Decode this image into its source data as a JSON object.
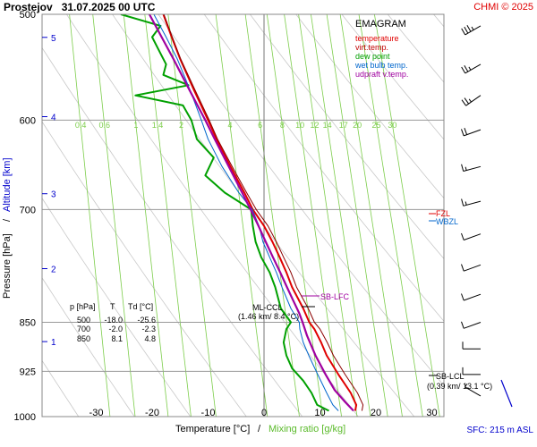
{
  "header": {
    "station_date": "Prostejov   31.07.2025 00 UTC",
    "credit": "CHMI © 2025"
  },
  "legend": {
    "title": "EMAGRAM",
    "items": [
      {
        "label": "temperature",
        "color": "#e00000"
      },
      {
        "label": "virt.temp.",
        "color": "#c00000"
      },
      {
        "label": "dew point",
        "color": "#00a000"
      },
      {
        "label": "wet bulb temp.",
        "color": "#0066cc"
      },
      {
        "label": "udpraft v.temp.",
        "color": "#a000a0"
      }
    ]
  },
  "table": {
    "header": [
      "p [hPa]",
      "T",
      "Td [°C]"
    ],
    "rows": [
      [
        "500",
        "-18.0",
        "-25.6"
      ],
      [
        "700",
        "-2.0",
        "-2.3"
      ],
      [
        "850",
        "8.1",
        "4.8"
      ]
    ]
  },
  "annotations": {
    "sb_lfc": "SB-LFC",
    "ml_ccl": "ML-CCL",
    "ml_ccl_values": "(1.46 km/ 8.4 °C)",
    "sb_lcl": "SB-LCL",
    "sb_lcl_values": "(0.39 km/ 13.1 °C)",
    "wbzl": "WBZL",
    "fzl": "FZL",
    "sfc": "SFC: 215 m ASL"
  },
  "axes": {
    "xlabel_temp": "Temperature [°C]",
    "xlabel_sep": "/",
    "xlabel_mix": "Mixing ratio [g/kg]",
    "ylabel_pressure": "Pressure [hPa]",
    "ylabel_sep": "/",
    "ylabel_alt": "Altitude [km]"
  },
  "colors": {
    "temperature": "#e00000",
    "virtual_temp": "#8b0000",
    "dew_point": "#00a000",
    "wet_bulb": "#0066cc",
    "parcel": "#a000a0",
    "mixing_ratio": "#7ccd4a",
    "dry_adiabat": "#c8c8c8",
    "altitude_ticks": "#0000cc"
  },
  "chart_data": {
    "type": "line",
    "title": "Prostejov 31.07.2025 00 UTC",
    "xlabel": "Temperature [°C] / Mixing ratio [g/kg]",
    "ylabel": "Pressure [hPa] / Altitude [km]",
    "xlim": [
      -40,
      35
    ],
    "ylim": [
      1000,
      500
    ],
    "x_ticks": [
      -30,
      -20,
      -10,
      0,
      10,
      20,
      30
    ],
    "pressure_ticks": [
      500,
      600,
      700,
      850,
      925,
      1000
    ],
    "altitude_ticks_km": [
      1,
      2,
      3,
      4,
      5
    ],
    "mixing_ratio_labels": [
      "0.4",
      "0.6",
      "1",
      "1.4",
      "2",
      "4",
      "6",
      "8",
      "10",
      "12",
      "14",
      "17",
      "20",
      "25",
      "30"
    ],
    "mixing_ratio_values": [
      0.4,
      0.6,
      1,
      1.4,
      2,
      4,
      6,
      8,
      10,
      12,
      14,
      17,
      20,
      25,
      30
    ],
    "surface_pressure_hpa": 990,
    "fzl_pressure_hpa": 727,
    "wbzl_pressure_hpa": 733,
    "sb_lfc_pressure_hpa": 837,
    "sb_lcl_pressure_hpa": 955,
    "ml_ccl_pressure_hpa": 855,
    "series": [
      {
        "name": "temperature",
        "pressure": [
          990,
          980,
          960,
          930,
          900,
          880,
          860,
          850,
          830,
          800,
          780,
          760,
          740,
          720,
          700,
          680,
          650,
          620,
          600,
          570,
          540,
          520,
          500
        ],
        "values": [
          16.3,
          16.5,
          15.5,
          13.3,
          11.2,
          10.2,
          9.0,
          8.1,
          7.0,
          5.0,
          4.0,
          2.8,
          1.5,
          0.0,
          -2.0,
          -3.5,
          -6.0,
          -8.5,
          -10.0,
          -12.5,
          -15.0,
          -16.5,
          -18.0
        ]
      },
      {
        "name": "virt.temp.",
        "pressure": [
          990,
          980,
          960,
          930,
          900,
          880,
          860,
          850,
          830,
          800,
          780,
          760,
          740,
          720,
          700,
          680,
          650,
          620,
          600,
          570,
          540,
          520,
          500
        ],
        "values": [
          17.5,
          17.7,
          16.7,
          14.5,
          12.4,
          11.3,
          10.0,
          9.0,
          7.9,
          5.8,
          4.8,
          3.5,
          2.2,
          0.7,
          -1.4,
          -3.1,
          -5.7,
          -8.3,
          -9.8,
          -12.3,
          -14.9,
          -16.4,
          -17.9
        ]
      },
      {
        "name": "dew point",
        "pressure": [
          990,
          980,
          960,
          940,
          920,
          900,
          880,
          860,
          850,
          830,
          800,
          780,
          760,
          740,
          720,
          700,
          680,
          660,
          640,
          620,
          600,
          585,
          575,
          565,
          555,
          545,
          535,
          520,
          510,
          500
        ],
        "values": [
          11.6,
          9.5,
          8.5,
          7.0,
          5.0,
          4.0,
          3.5,
          4.0,
          4.8,
          3.0,
          2.0,
          1.0,
          -0.5,
          -1.5,
          -2.0,
          -2.3,
          -7.0,
          -10.5,
          -9.0,
          -12.0,
          -13.0,
          -14.5,
          -23.0,
          -13.5,
          -18.0,
          -17.5,
          -18.5,
          -20.0,
          -18.5,
          -25.6
        ]
      },
      {
        "name": "wet bulb temp.",
        "pressure": [
          990,
          980,
          960,
          930,
          900,
          880,
          860,
          850,
          830,
          800,
          780,
          760,
          740,
          720,
          700,
          680,
          650,
          620,
          600,
          570,
          540,
          520,
          500
        ],
        "values": [
          13.3,
          12.3,
          11.2,
          9.6,
          8.0,
          7.0,
          6.4,
          6.3,
          4.8,
          3.2,
          2.2,
          1.0,
          -0.2,
          -0.9,
          -2.1,
          -4.5,
          -7.5,
          -10.0,
          -11.2,
          -13.2,
          -15.5,
          -17.5,
          -19.7
        ]
      },
      {
        "name": "udpraft v.temp.",
        "pressure": [
          990,
          975,
          955,
          930,
          900,
          870,
          850,
          837,
          820,
          800,
          780,
          760,
          740,
          720,
          700,
          680,
          650,
          620,
          600,
          570,
          540,
          520,
          500
        ],
        "values": [
          16.0,
          14.5,
          12.6,
          11.0,
          9.2,
          7.7,
          6.9,
          6.3,
          5.3,
          4.1,
          2.9,
          1.6,
          0.3,
          -1.0,
          -2.4,
          -3.9,
          -6.3,
          -8.8,
          -10.5,
          -13.3,
          -16.2,
          -18.3,
          -20.5
        ]
      }
    ],
    "grid": true,
    "legend_position": "top-right"
  },
  "wind_barbs": [
    {
      "pressure": 510,
      "direction_deg": 240,
      "speed_kt": 35
    },
    {
      "pressure": 545,
      "direction_deg": 240,
      "speed_kt": 25
    },
    {
      "pressure": 575,
      "direction_deg": 235,
      "speed_kt": 25
    },
    {
      "pressure": 610,
      "direction_deg": 250,
      "speed_kt": 20
    },
    {
      "pressure": 650,
      "direction_deg": 255,
      "speed_kt": 15
    },
    {
      "pressure": 690,
      "direction_deg": 255,
      "speed_kt": 15
    },
    {
      "pressure": 730,
      "direction_deg": 250,
      "speed_kt": 10
    },
    {
      "pressure": 770,
      "direction_deg": 250,
      "speed_kt": 10
    },
    {
      "pressure": 810,
      "direction_deg": 250,
      "speed_kt": 10
    },
    {
      "pressure": 850,
      "direction_deg": 250,
      "speed_kt": 10
    },
    {
      "pressure": 890,
      "direction_deg": 270,
      "speed_kt": 10
    },
    {
      "pressure": 930,
      "direction_deg": 270,
      "speed_kt": 10
    },
    {
      "pressure": 965,
      "direction_deg": 300,
      "speed_kt": 5
    }
  ]
}
